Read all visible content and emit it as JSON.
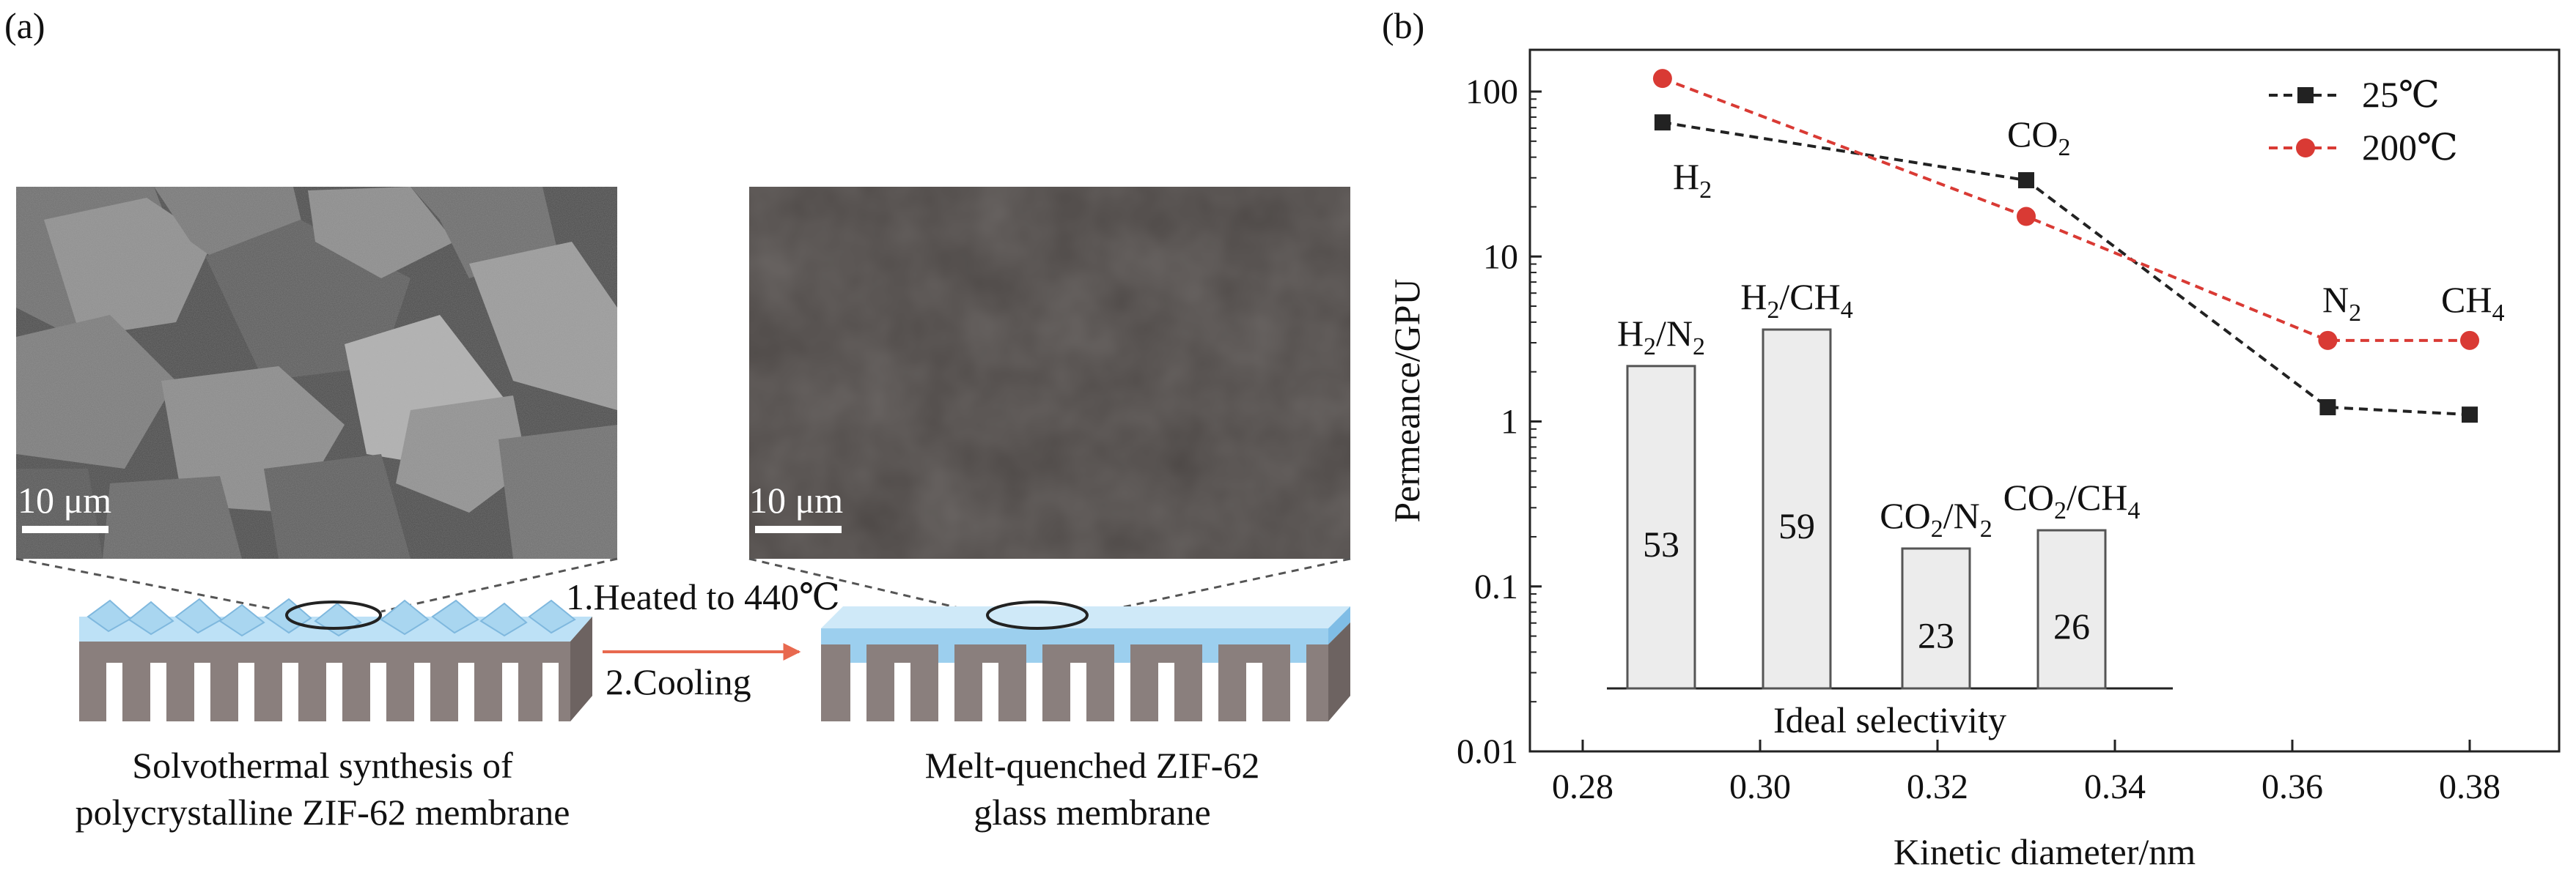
{
  "panel_a": {
    "label": "(a)",
    "scale_bar_left": "10 μm",
    "scale_bar_right": "10 μm",
    "step1": "1.Heated to 440℃",
    "step2": "2.Cooling",
    "caption_left_line1": "Solvothermal synthesis of",
    "caption_left_line2": "polycrystalline ZIF-62 membrane",
    "caption_right_line1": "Melt-quenched ZIF-62",
    "caption_right_line2": "glass membrane",
    "arrow_color": "#e8694f",
    "crystal_color": "#a9d6f0",
    "glass_layer_color": "#9ccfee",
    "support_color": "#7d716f"
  },
  "panel_b": {
    "label": "(b)",
    "annotations": {
      "h2": "H",
      "h2_sub": "2",
      "co2": "CO",
      "co2_sub": "2",
      "n2": "N",
      "n2_sub": "2",
      "ch4": "CH",
      "ch4_sub": "4"
    }
  },
  "chart_data": [
    {
      "type": "scatter",
      "x": [
        0.289,
        0.33,
        0.364,
        0.38
      ],
      "xlabel": "Kinetic diameter/nm",
      "ylabel": "Permeance/GPU",
      "yscale": "log",
      "xlim": [
        0.27,
        0.39
      ],
      "ylim": [
        0.01,
        200
      ],
      "xticks": [
        "0.28",
        "0.30",
        "0.32",
        "0.34",
        "0.36",
        "0.38"
      ],
      "yticks": [
        "0.01",
        "0.1",
        "1",
        "10",
        "100"
      ],
      "legend_position": "top-right",
      "series": [
        {
          "name": "25℃",
          "values": [
            65,
            29,
            1.22,
            1.1
          ],
          "color": "#222222",
          "marker": "square",
          "line": "dashed"
        },
        {
          "name": "200℃",
          "values": [
            120,
            17.5,
            3.1,
            3.1
          ],
          "color": "#d93a34",
          "marker": "circle",
          "line": "dashed"
        }
      ]
    },
    {
      "type": "bar",
      "xlabel": "Ideal selectivity",
      "categories": [
        {
          "main": "H",
          "sub": "2",
          "mid": "/N",
          "sub2": "2"
        },
        {
          "main": "H",
          "sub": "2",
          "mid": "/CH",
          "sub2": "4"
        },
        {
          "main": "CO",
          "sub": "2",
          "mid": "/N",
          "sub2": "2"
        },
        {
          "main": "CO",
          "sub": "2",
          "mid": "/CH",
          "sub2": "4"
        }
      ],
      "values": [
        53,
        59,
        23,
        26
      ],
      "value_labels": [
        "53",
        "59",
        "23",
        "26"
      ],
      "bar_color": "#ececec"
    }
  ]
}
